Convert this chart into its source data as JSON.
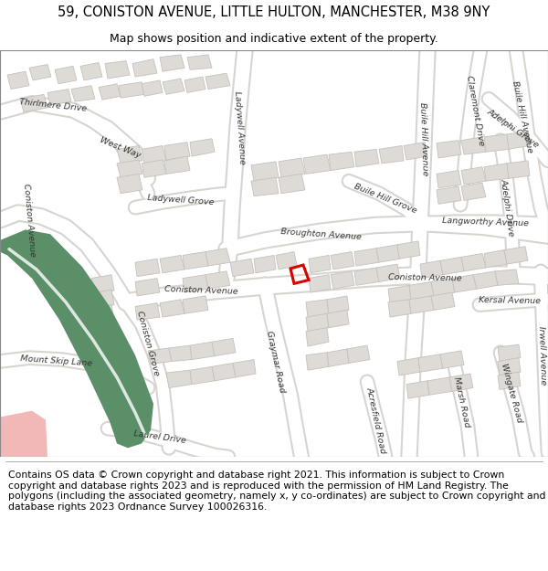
{
  "title_line1": "59, CONISTON AVENUE, LITTLE HULTON, MANCHESTER, M38 9NY",
  "title_line2": "Map shows position and indicative extent of the property.",
  "footer_text": "Contains OS data © Crown copyright and database right 2021. This information is subject to Crown copyright and database rights 2023 and is reproduced with the permission of HM Land Registry. The polygons (including the associated geometry, namely x, y co-ordinates) are subject to Crown copyright and database rights 2023 Ordnance Survey 100026316.",
  "map_bg": "#f2f0ed",
  "road_color": "#ffffff",
  "road_outline": "#d8d5d0",
  "building_color": "#dedad5",
  "building_outline": "#c5c2bc",
  "green_color": "#5a8f68",
  "pink_color": "#f2b8b8",
  "plot_color": "#dd0000",
  "label_color": "#333333",
  "fig_width": 6.0,
  "fig_height": 6.25,
  "dpi": 100,
  "title_fontsize": 10.5,
  "subtitle_fontsize": 9.0,
  "footer_fontsize": 7.8,
  "road_label_fontsize": 6.8
}
